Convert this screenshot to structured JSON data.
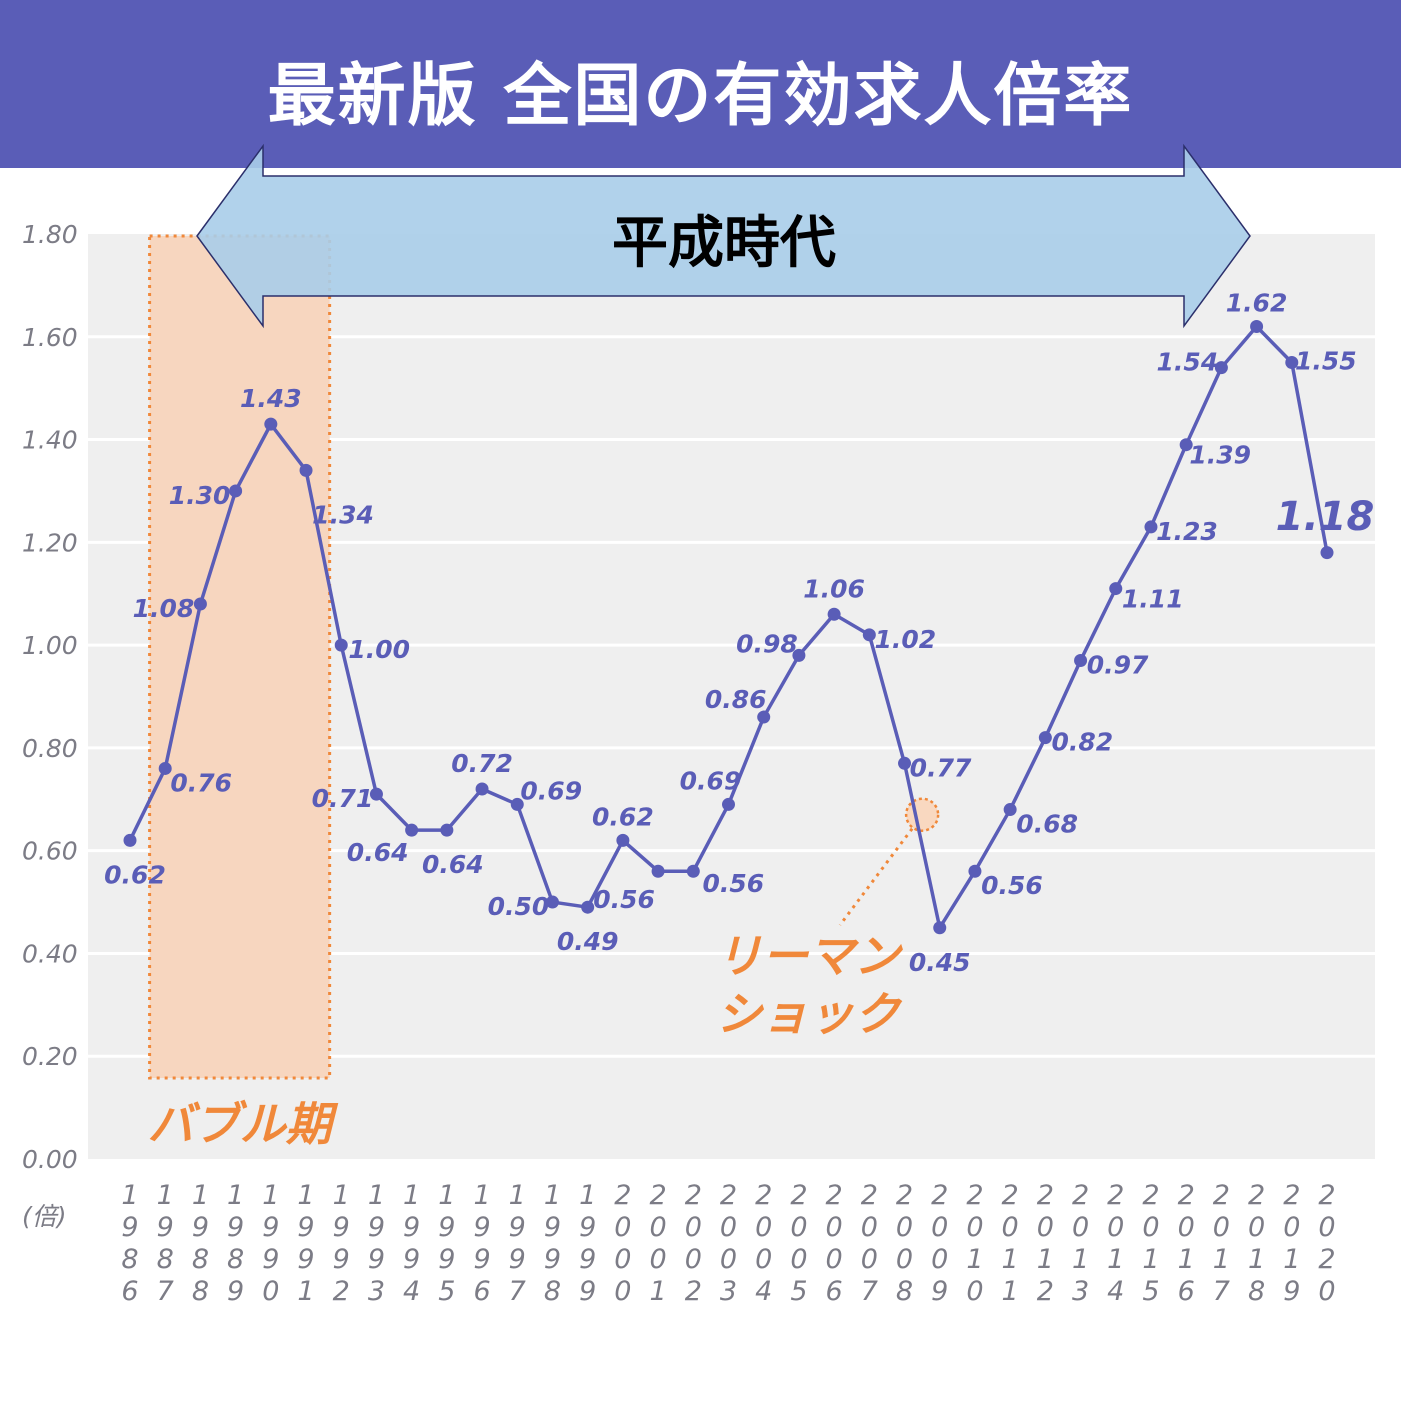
{
  "header": {
    "title": "最新版 全国の有効求人倍率"
  },
  "chart_data": {
    "type": "line",
    "title": "最新版 全国の有効求人倍率",
    "ylabel": "(倍)",
    "ylim": [
      0,
      1.8
    ],
    "yticks": [
      "0.00",
      "0.20",
      "0.40",
      "0.60",
      "0.80",
      "1.00",
      "1.20",
      "1.40",
      "1.60",
      "1.80"
    ],
    "grid": true,
    "x": [
      "1986",
      "1987",
      "1988",
      "1989",
      "1990",
      "1991",
      "1992",
      "1993",
      "1994",
      "1995",
      "1996",
      "1997",
      "1998",
      "1999",
      "2000",
      "2001",
      "2002",
      "2003",
      "2004",
      "2005",
      "2006",
      "2007",
      "2008",
      "2009",
      "2010",
      "2011",
      "2012",
      "2013",
      "2014",
      "2015",
      "2016",
      "2017",
      "2018",
      "2019",
      "2020"
    ],
    "series": [
      {
        "values": [
          0.62,
          0.76,
          1.08,
          1.3,
          1.43,
          1.34,
          1.0,
          0.71,
          0.64,
          0.64,
          0.72,
          0.69,
          0.5,
          0.49,
          0.62,
          0.56,
          0.56,
          0.69,
          0.86,
          0.98,
          1.06,
          1.02,
          0.77,
          0.45,
          0.56,
          0.68,
          0.82,
          0.97,
          1.11,
          1.23,
          1.39,
          1.54,
          1.62,
          1.55,
          1.18
        ],
        "labels": [
          "0.62",
          "0.76",
          "1.08",
          "1.30",
          "1.43",
          "1.34",
          "1.00",
          "0.71",
          "0.64",
          "0.64",
          "0.72",
          "0.69",
          "0.50",
          "0.49",
          "0.62",
          "0.56",
          "0.56",
          "0.69",
          "0.86",
          "0.98",
          "1.06",
          "1.02",
          "0.77",
          "0.45",
          "0.56",
          "0.68",
          "0.82",
          "0.97",
          "1.11",
          "1.23",
          "1.39",
          "1.54",
          "1.62",
          "1.55",
          "1.18"
        ],
        "color": "#5a5db7"
      }
    ],
    "annotations": {
      "era": {
        "label": "平成時代",
        "from": "1989",
        "to": "2018"
      },
      "bubble": {
        "label": "バブル期",
        "from": "1986.5",
        "to": "1991.5"
      },
      "lehman": {
        "line1": "リーマン",
        "line2": "ショック",
        "point": "2008.5"
      }
    },
    "colors": {
      "line": "#5a5db7",
      "accent": "#f0883a",
      "plot_bg": "#efefef",
      "grid": "#ffffff",
      "era_arrow": "#a9cde9"
    }
  }
}
